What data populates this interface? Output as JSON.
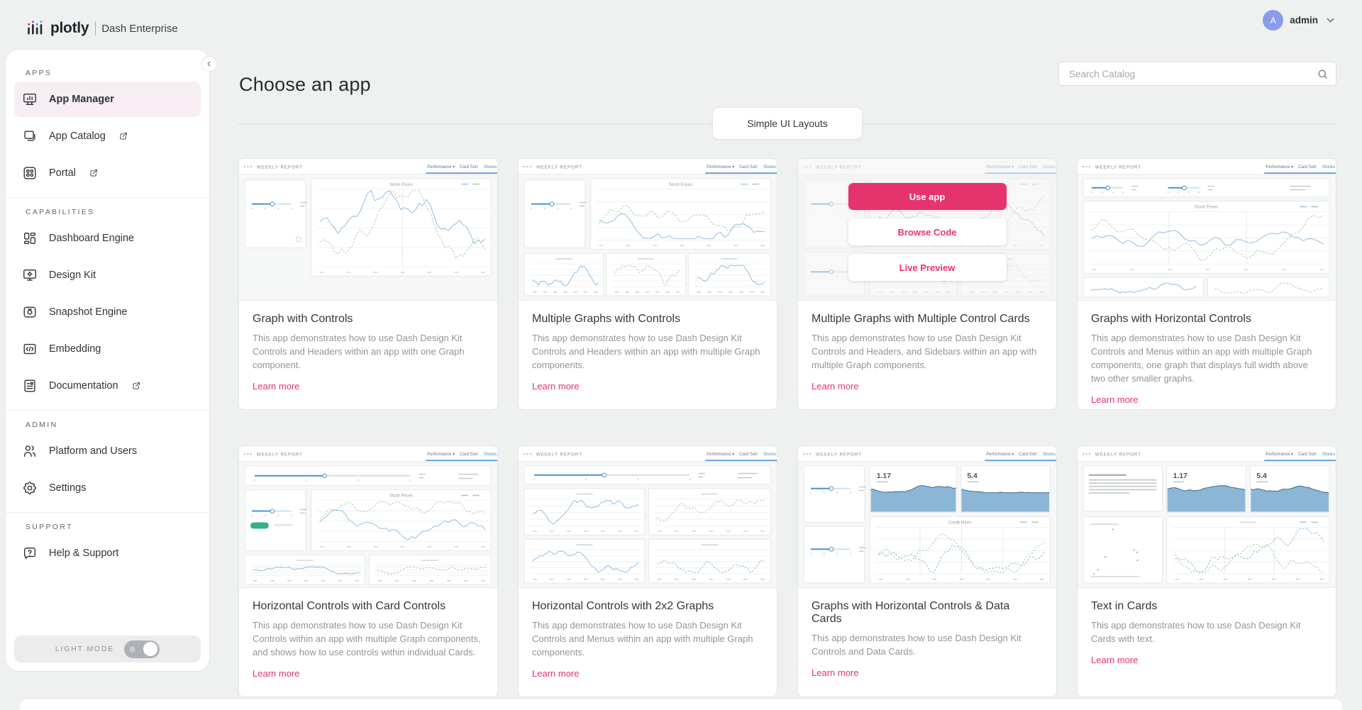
{
  "colors": {
    "accent": "#e6336e",
    "avatar": "#8a9ce8",
    "thumb_blue": "#8fbfe3",
    "thumb_green": "#a9cda6",
    "thumb_area_fill": "#8cb6d6"
  },
  "header": {
    "logo": "plotly",
    "product": "Dash Enterprise",
    "user_initial": "A",
    "user_name": "admin"
  },
  "sidebar": {
    "light_mode": "LIGHT MODE",
    "sections": [
      {
        "label": "APPS",
        "items": [
          {
            "label": "App Manager",
            "icon": "app-manager",
            "active": true
          },
          {
            "label": "App Catalog",
            "icon": "app-catalog",
            "external": true
          },
          {
            "label": "Portal",
            "icon": "portal",
            "external": true
          }
        ]
      },
      {
        "label": "CAPABILITIES",
        "items": [
          {
            "label": "Dashboard Engine",
            "icon": "dashboard-engine"
          },
          {
            "label": "Design Kit",
            "icon": "design-kit"
          },
          {
            "label": "Snapshot Engine",
            "icon": "snapshot-engine"
          },
          {
            "label": "Embedding",
            "icon": "embedding"
          },
          {
            "label": "Documentation",
            "icon": "documentation",
            "external": true
          }
        ]
      },
      {
        "label": "ADMIN",
        "items": [
          {
            "label": "Platform and Users",
            "icon": "users"
          },
          {
            "label": "Settings",
            "icon": "settings"
          }
        ]
      },
      {
        "label": "SUPPORT",
        "items": [
          {
            "label": "Help & Support",
            "icon": "help"
          }
        ]
      }
    ]
  },
  "main": {
    "title": "Choose an app",
    "search_placeholder": "Search Catalog",
    "category_chip": "Simple UI Layouts",
    "learn_more": "Learn more",
    "thumb_common": {
      "report_title": "WEEKLY REPORT",
      "menu": [
        "Performance",
        "Card Sort",
        "Stocks"
      ],
      "data_card_values": [
        "1.17",
        "5.4"
      ],
      "chart_titles": {
        "stock": "Stock Prices",
        "credit": "Credit Miner"
      }
    },
    "cards": [
      {
        "title": "Graph with Controls",
        "description": "This app demonstrates how to use Dash Design Kit Controls and Headers within an app with one Graph component.",
        "thumb": "one-graph"
      },
      {
        "title": "Multiple Graphs with Controls",
        "description": "This app demonstrates how to use Dash Design Kit Controls and Headers within an app with multiple Graph components.",
        "thumb": "multi-graph"
      },
      {
        "title": "Multiple Graphs with Multiple Control Cards",
        "description": "This app demonstrates how to use Dash Design Kit Controls and Headers, and Sidebars within an app with multiple Graph components.",
        "thumb": "multi-control",
        "actions": [
          "Use app",
          "Browse Code",
          "Live Preview"
        ]
      },
      {
        "title": "Graphs with Horizontal Controls",
        "description": "This app demonstrates how to use Dash Design Kit Controls and Menus within an app with multiple Graph components, one graph that displays full width above two other smaller graphs.",
        "thumb": "horizontal"
      },
      {
        "title": "Horizontal Controls with Card Controls",
        "description": "This app demonstrates how to use Dash Design Kit Controls within an app with multiple Graph components, and shows how to use controls within individual Cards.",
        "thumb": "hcards"
      },
      {
        "title": "Horizontal Controls with 2x2 Graphs",
        "description": "This app demonstrates how to use Dash Design Kit Controls and Menus within an app with multiple Graph components.",
        "thumb": "h2x2"
      },
      {
        "title": "Graphs with Horizontal Controls & Data Cards",
        "description": "This app demonstrates how to use Dash Design Kit Controls and Data Cards.",
        "thumb": "datacards"
      },
      {
        "title": "Text in Cards",
        "description": "This app demonstrates how to use Dash Design Kit Cards with text.",
        "thumb": "textcards"
      }
    ]
  }
}
